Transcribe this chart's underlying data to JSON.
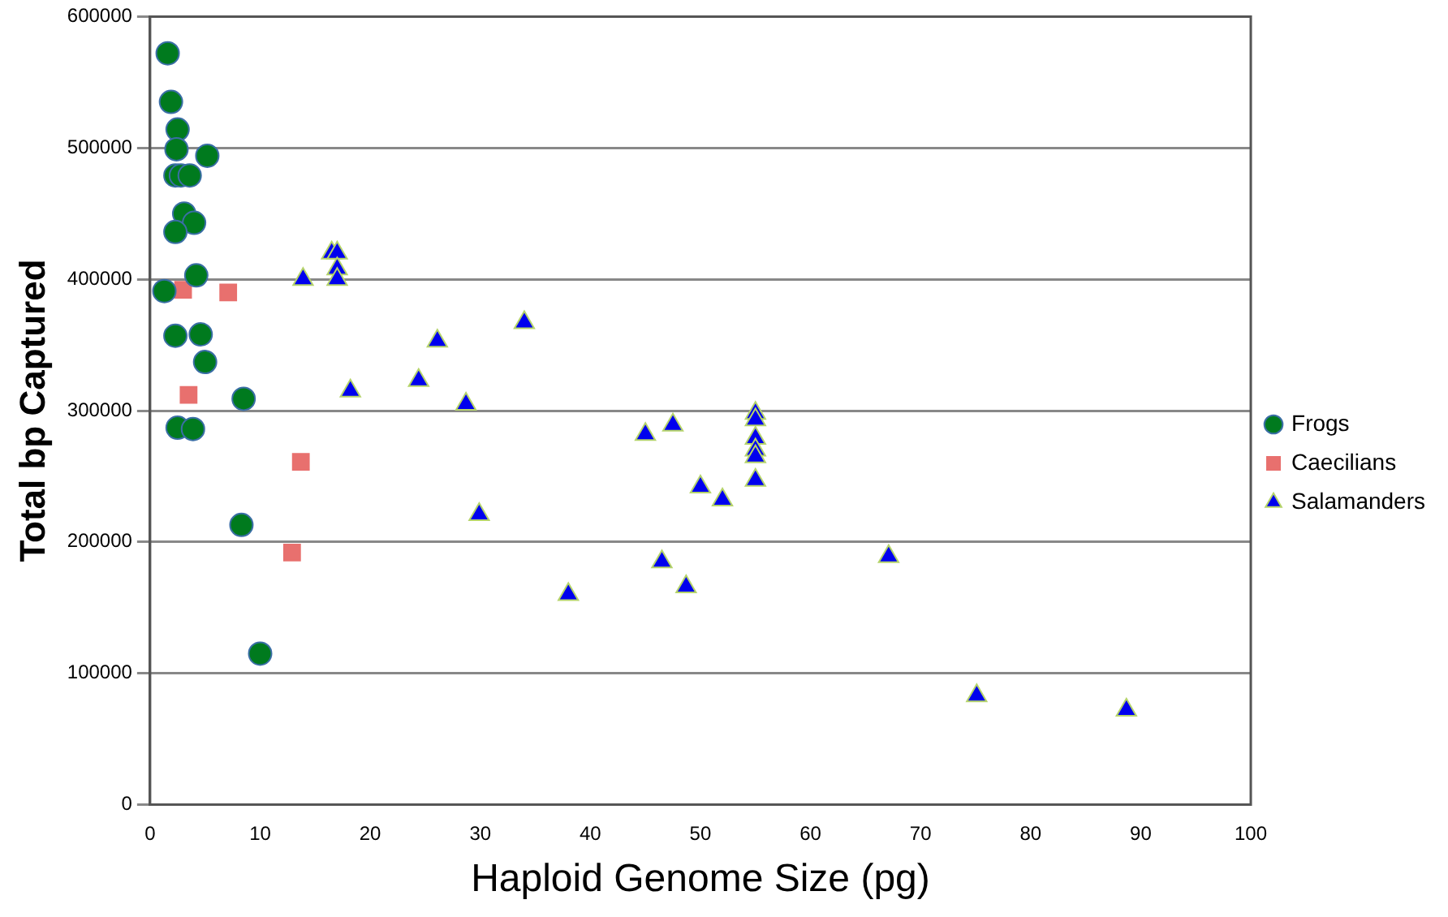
{
  "chart_data": {
    "type": "scatter",
    "xlabel": "Haploid Genome Size (pg)",
    "ylabel": "Total bp Captured",
    "xlim": [
      0,
      100
    ],
    "xticks": [
      0,
      10,
      20,
      30,
      40,
      50,
      60,
      70,
      80,
      90,
      100
    ],
    "ylim": [
      0,
      600000
    ],
    "yticks": [
      0,
      100000,
      200000,
      300000,
      400000,
      500000,
      600000
    ],
    "grid": "y",
    "legend": "right",
    "series": [
      {
        "name": "Frogs",
        "color": "#007a1e",
        "marker": "circle",
        "x": [
          1.6,
          1.9,
          2.5,
          2.4,
          5.2,
          2.3,
          2.8,
          3.6,
          3.1,
          4.0,
          2.3,
          4.2,
          1.3,
          2.3,
          4.6,
          5.0,
          8.5,
          2.5,
          3.9,
          8.3,
          10.0
        ],
        "values": [
          572000,
          535000,
          514000,
          499000,
          494000,
          479000,
          479000,
          479000,
          450000,
          443000,
          436000,
          403000,
          391000,
          357000,
          358000,
          337000,
          309000,
          287000,
          286000,
          213000,
          115000
        ]
      },
      {
        "name": "Caecilians",
        "color": "#e8706e",
        "marker": "square",
        "x": [
          3.0,
          7.1,
          3.5,
          13.7,
          12.9
        ],
        "values": [
          392000,
          390000,
          312000,
          261000,
          192000
        ]
      },
      {
        "name": "Salamanders",
        "color": "#0000ee",
        "marker": "triangle",
        "x": [
          13.9,
          16.5,
          17.0,
          17.0,
          17.0,
          18.2,
          26.1,
          34.0,
          24.4,
          28.7,
          29.9,
          38.0,
          45.0,
          47.5,
          55.0,
          55.0,
          55.0,
          55.0,
          55.0,
          55.0,
          50.0,
          52.0,
          46.5,
          48.7,
          67.1,
          75.1,
          88.7
        ],
        "values": [
          400000,
          420000,
          420000,
          408000,
          400000,
          315000,
          353000,
          367000,
          323000,
          305000,
          221000,
          160000,
          282000,
          289000,
          298000,
          293000,
          279000,
          270000,
          265000,
          247000,
          242000,
          232000,
          185000,
          166000,
          189000,
          83000,
          72000
        ]
      }
    ]
  }
}
